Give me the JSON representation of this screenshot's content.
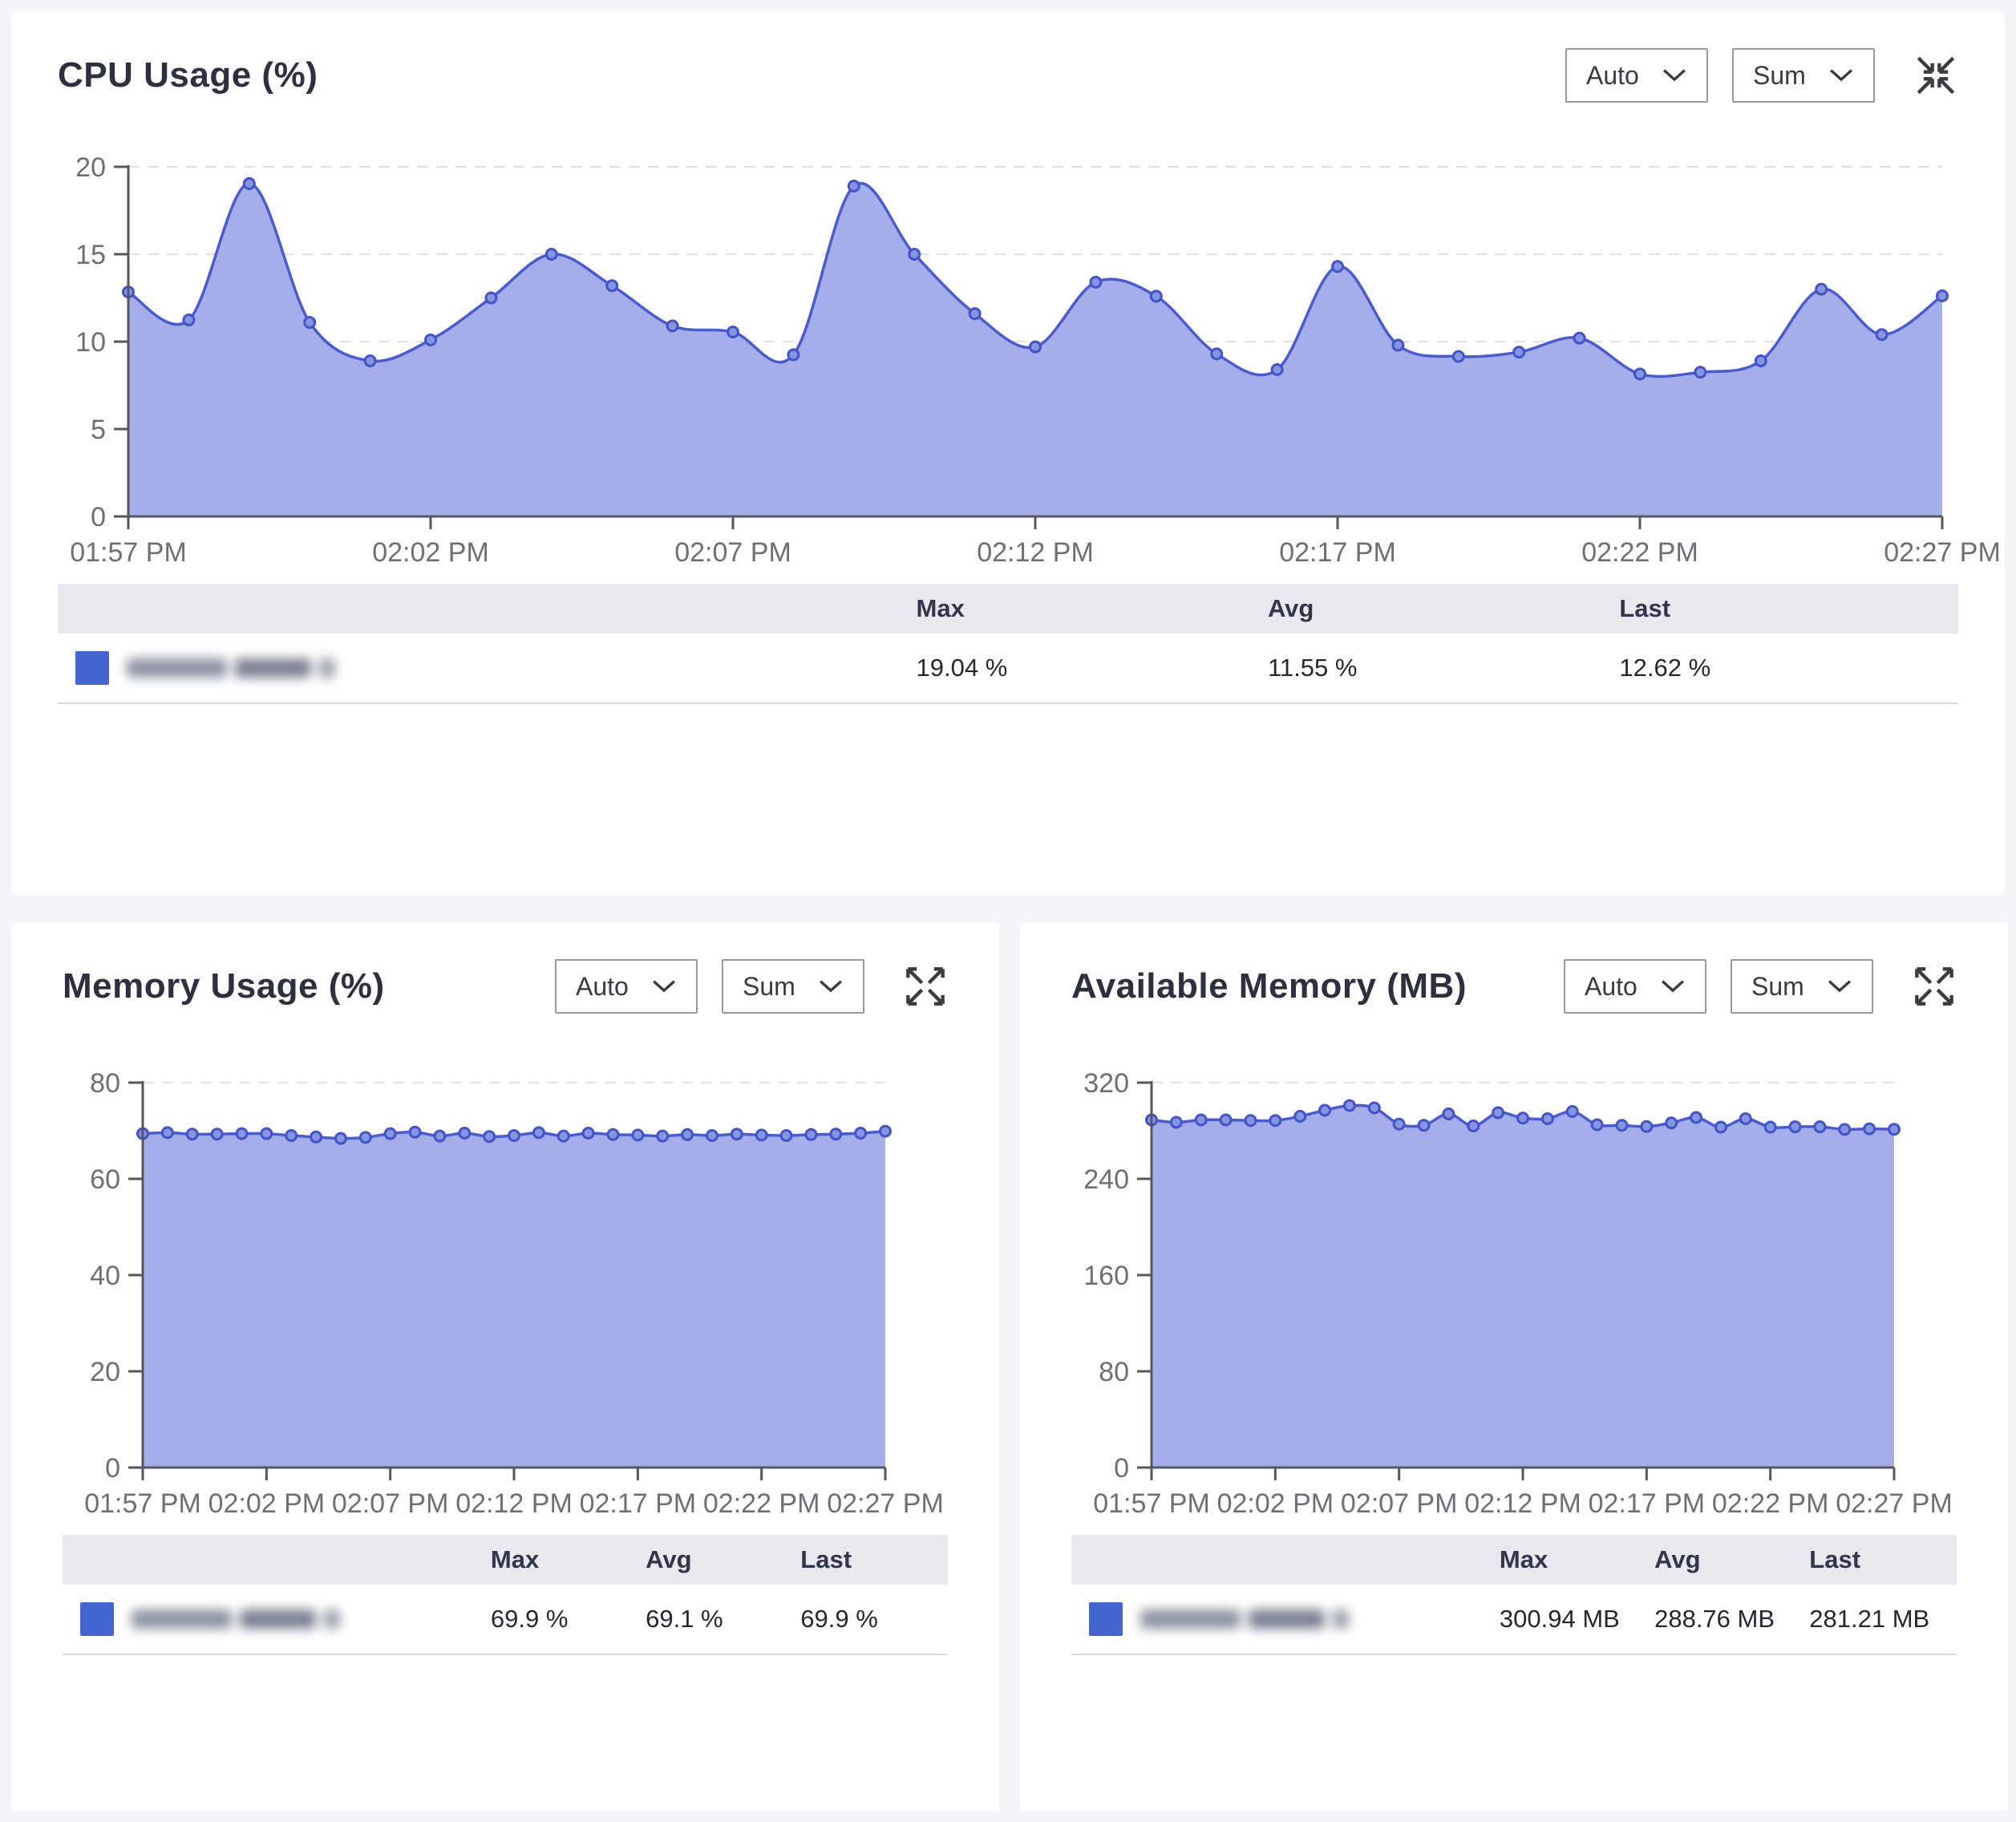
{
  "colors": {
    "page_bg": "#f4f4f9",
    "card_bg": "#ffffff",
    "accent": "#4365d2",
    "area_fill": "#a3aeea",
    "line": "#4a5ad0",
    "dot_fill": "#8495e2",
    "dot_stroke": "#4353c8",
    "grid": "#e1e1e6",
    "axis": "#56575d",
    "tick_label": "#6d6f75",
    "legend_header_bg": "#e8e8ee",
    "title": "#2e3040"
  },
  "charts": [
    {
      "title": "CPU Usage (%)",
      "controls": {
        "interval": "Auto",
        "aggregation": "Sum",
        "resize_icon": "collapse"
      },
      "legend": {
        "headers": [
          "Max",
          "Avg",
          "Last"
        ],
        "row": {
          "label_redacted": true,
          "max": "19.04 %",
          "avg": "11.55 %",
          "last": "12.62 %"
        }
      },
      "chart_data": {
        "type": "area",
        "title": "CPU Usage (%)",
        "unit": "%",
        "x_labels": [
          "01:57 PM",
          "02:02 PM",
          "02:07 PM",
          "02:12 PM",
          "02:17 PM",
          "02:22 PM",
          "02:27 PM"
        ],
        "x_tick_indices": [
          0,
          5,
          10,
          15,
          20,
          25,
          30
        ],
        "y_ticks": [
          0,
          5,
          10,
          15,
          20
        ],
        "ylim": [
          0,
          20
        ],
        "grid": "dashed-horizontal",
        "legend_position": "bottom-table",
        "values": [
          12.84,
          11.24,
          19.04,
          11.1,
          8.9,
          10.1,
          12.5,
          15.0,
          13.2,
          10.9,
          10.55,
          9.25,
          18.9,
          15.0,
          11.6,
          9.7,
          13.4,
          12.6,
          9.3,
          8.4,
          14.3,
          9.8,
          9.15,
          9.4,
          10.2,
          8.15,
          8.25,
          8.9,
          13.0,
          10.4,
          12.62
        ],
        "stats": {
          "max": 19.04,
          "avg": 11.55,
          "last": 12.62
        }
      }
    },
    {
      "title": "Memory Usage (%)",
      "controls": {
        "interval": "Auto",
        "aggregation": "Sum",
        "resize_icon": "expand"
      },
      "legend": {
        "headers": [
          "Max",
          "Avg",
          "Last"
        ],
        "row": {
          "label_redacted": true,
          "max": "69.9 %",
          "avg": "69.1 %",
          "last": "69.9 %"
        }
      },
      "chart_data": {
        "type": "area",
        "title": "Memory Usage (%)",
        "unit": "%",
        "x_labels": [
          "01:57 PM",
          "02:02 PM",
          "02:07 PM",
          "02:12 PM",
          "02:17 PM",
          "02:22 PM",
          "02:27 PM"
        ],
        "x_tick_indices": [
          0,
          5,
          10,
          15,
          20,
          25,
          30
        ],
        "y_ticks": [
          0,
          20,
          40,
          60,
          80
        ],
        "ylim": [
          0,
          80
        ],
        "grid": "dashed-horizontal",
        "legend_position": "bottom-table",
        "values": [
          69.4,
          69.6,
          69.3,
          69.3,
          69.4,
          69.4,
          69.0,
          68.7,
          68.4,
          68.6,
          69.4,
          69.7,
          68.9,
          69.5,
          68.8,
          69.0,
          69.6,
          68.9,
          69.5,
          69.2,
          69.1,
          68.9,
          69.2,
          69.0,
          69.3,
          69.1,
          69.0,
          69.2,
          69.3,
          69.5,
          69.9
        ],
        "stats": {
          "max": 69.9,
          "avg": 69.1,
          "last": 69.9
        }
      }
    },
    {
      "title": "Available Memory (MB)",
      "controls": {
        "interval": "Auto",
        "aggregation": "Sum",
        "resize_icon": "expand"
      },
      "legend": {
        "headers": [
          "Max",
          "Avg",
          "Last"
        ],
        "row": {
          "label_redacted": true,
          "max": "300.94 MB",
          "avg": "288.76 MB",
          "last": "281.21 MB"
        }
      },
      "chart_data": {
        "type": "area",
        "title": "Available Memory (MB)",
        "unit": "MB",
        "x_labels": [
          "01:57 PM",
          "02:02 PM",
          "02:07 PM",
          "02:12 PM",
          "02:17 PM",
          "02:22 PM",
          "02:27 PM"
        ],
        "x_tick_indices": [
          0,
          5,
          10,
          15,
          20,
          25,
          30
        ],
        "y_ticks": [
          0,
          80,
          160,
          240,
          320
        ],
        "ylim": [
          0,
          320
        ],
        "grid": "dashed-horizontal",
        "legend_position": "bottom-table",
        "values": [
          289,
          287,
          289,
          289,
          288.5,
          288.5,
          292,
          297,
          300.9,
          299,
          285.5,
          284.5,
          294,
          284,
          295,
          290.5,
          290,
          296,
          285,
          284.5,
          283.5,
          286.5,
          291,
          283,
          290,
          283,
          283.3,
          283.3,
          281.1,
          281.6,
          281.2
        ],
        "stats": {
          "max": 300.94,
          "avg": 288.76,
          "last": 281.21
        }
      }
    }
  ]
}
